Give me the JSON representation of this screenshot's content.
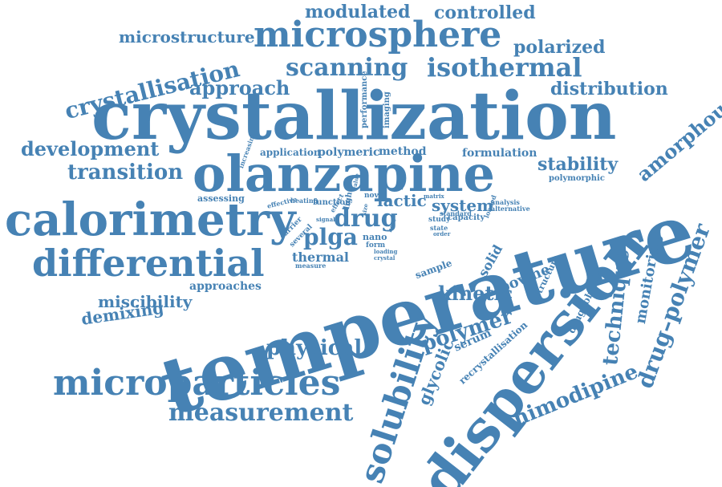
{
  "cloud": {
    "color": "#4682b4",
    "words": [
      "crystallization",
      "temperature",
      "olanzapine",
      "dispersion",
      "calorimetry",
      "microsphere",
      "microparticles",
      "solubility",
      "differential",
      "scanning",
      "isothermal",
      "crystallisation",
      "measurement",
      "drug",
      "drug–polymer",
      "nimodipine",
      "technique",
      "physical",
      "amorphous",
      "polymer",
      "transition",
      "development",
      "approach",
      "modulated",
      "controlled",
      "polarized",
      "microstructure",
      "distribution",
      "plga",
      "kinetic",
      "stability",
      "demixing",
      "miscibility",
      "glycolic",
      "monitoring",
      "lactic",
      "system",
      "approaches",
      "bovine",
      "thermal",
      "solid",
      "application",
      "polymeric",
      "method",
      "formulation",
      "drugpolymer",
      "recrystallisation",
      "serum",
      "polymorphic",
      "structure",
      "sample",
      "performance",
      "imaging",
      "increasing",
      "assessing",
      "effective",
      "heating",
      "function",
      "light",
      "novel",
      "carrier",
      "several",
      "nano",
      "form",
      "capacity",
      "study",
      "standard",
      "loaded",
      "analysis",
      "alternative",
      "matrix",
      "state",
      "measure",
      "loading",
      "crystal",
      "effect",
      "signal",
      "heat",
      "order",
      "size",
      "micro",
      "value"
    ]
  }
}
